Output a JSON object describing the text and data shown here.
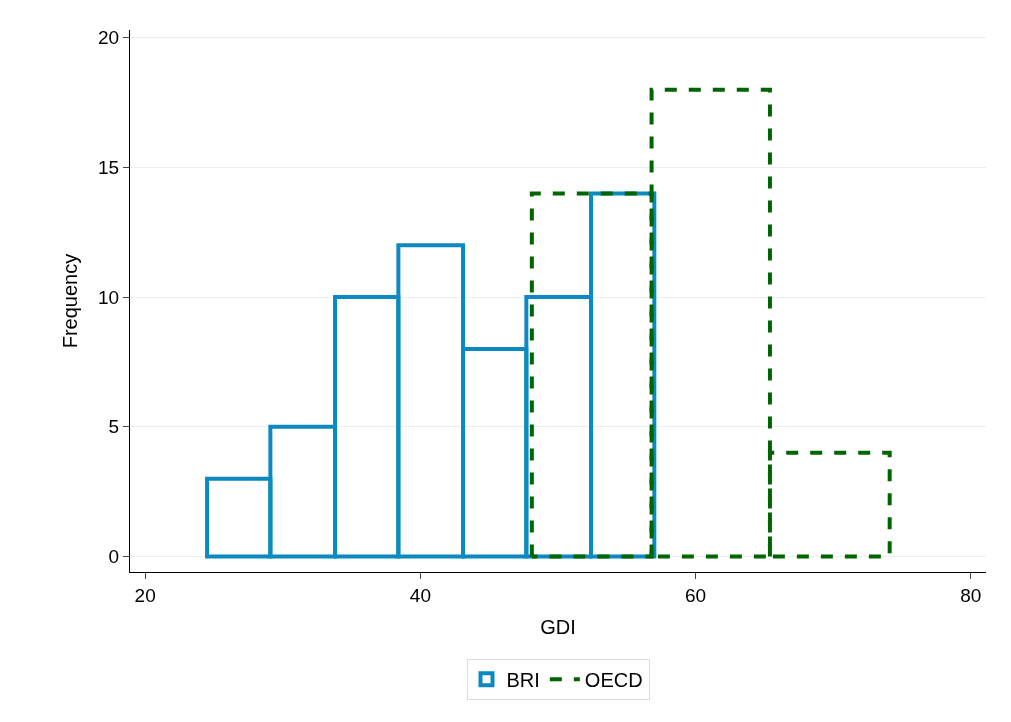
{
  "chart_data": {
    "type": "histogram",
    "xlabel": "GDI",
    "ylabel": "Frequency",
    "bins": [
      24.5,
      29.1,
      33.8,
      38.4,
      43.1,
      47.7,
      52.4,
      57.0
    ],
    "series": [
      {
        "name": "BRI",
        "color": "#0a8ac0",
        "line_style": "solid",
        "values": [
          3,
          5,
          10,
          12,
          8,
          10,
          14
        ]
      },
      {
        "name": "OECD",
        "color": "#006400",
        "line_style": "dashed",
        "bins": [
          48.1,
          56.8,
          65.4,
          74.1
        ],
        "values": [
          14,
          18,
          4
        ]
      }
    ],
    "xlim": [
      18.9,
      81.1
    ],
    "xticks": [
      20,
      40,
      60,
      80
    ],
    "ylim": [
      -0.6,
      20.3
    ],
    "yticks": [
      0,
      5,
      10,
      15,
      20
    ],
    "grid": "y",
    "legend": "bottom"
  }
}
